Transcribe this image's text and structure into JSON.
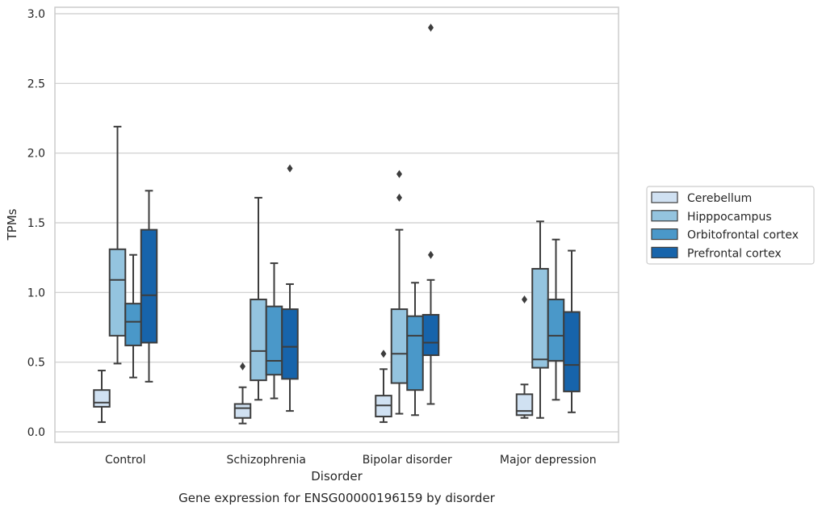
{
  "chart_data": {
    "type": "box",
    "title": "",
    "caption": "Gene expression for ENSG00000196159 by disorder",
    "xlabel": "Disorder",
    "ylabel": "TPMs",
    "ylim": [
      -0.07,
      3.05
    ],
    "yticks": [
      0.0,
      0.5,
      1.0,
      1.5,
      2.0,
      2.5,
      3.0
    ],
    "ytick_labels": [
      "0.0",
      "0.5",
      "1.0",
      "1.5",
      "2.0",
      "2.5",
      "3.0"
    ],
    "categories": [
      "Control",
      "Schizophrenia",
      "Bipolar disorder",
      "Major depression"
    ],
    "grid": "horizontal",
    "legend_position": "right",
    "series": [
      {
        "name": "Cerebellum",
        "color": "#d0e1f2",
        "boxes": [
          {
            "q1": 0.18,
            "median": 0.21,
            "q3": 0.3,
            "whisker_low": 0.07,
            "whisker_high": 0.44,
            "outliers": []
          },
          {
            "q1": 0.1,
            "median": 0.17,
            "q3": 0.2,
            "whisker_low": 0.06,
            "whisker_high": 0.32,
            "outliers": [
              0.47
            ]
          },
          {
            "q1": 0.11,
            "median": 0.19,
            "q3": 0.26,
            "whisker_low": 0.07,
            "whisker_high": 0.45,
            "outliers": [
              0.56
            ]
          },
          {
            "q1": 0.12,
            "median": 0.15,
            "q3": 0.27,
            "whisker_low": 0.1,
            "whisker_high": 0.34,
            "outliers": [
              0.95
            ]
          }
        ]
      },
      {
        "name": "Hipppocampus",
        "color": "#94c4df",
        "boxes": [
          {
            "q1": 0.69,
            "median": 1.09,
            "q3": 1.31,
            "whisker_low": 0.49,
            "whisker_high": 2.19,
            "outliers": []
          },
          {
            "q1": 0.37,
            "median": 0.58,
            "q3": 0.95,
            "whisker_low": 0.23,
            "whisker_high": 1.68,
            "outliers": []
          },
          {
            "q1": 0.35,
            "median": 0.56,
            "q3": 0.88,
            "whisker_low": 0.13,
            "whisker_high": 1.45,
            "outliers": [
              1.68,
              1.85
            ]
          },
          {
            "q1": 0.46,
            "median": 0.52,
            "q3": 1.17,
            "whisker_low": 0.1,
            "whisker_high": 1.51,
            "outliers": []
          }
        ]
      },
      {
        "name": "Orbitofrontal cortex",
        "color": "#4a98c9",
        "boxes": [
          {
            "q1": 0.62,
            "median": 0.79,
            "q3": 0.92,
            "whisker_low": 0.39,
            "whisker_high": 1.27,
            "outliers": []
          },
          {
            "q1": 0.41,
            "median": 0.51,
            "q3": 0.9,
            "whisker_low": 0.24,
            "whisker_high": 1.21,
            "outliers": []
          },
          {
            "q1": 0.3,
            "median": 0.69,
            "q3": 0.83,
            "whisker_low": 0.12,
            "whisker_high": 1.07,
            "outliers": []
          },
          {
            "q1": 0.51,
            "median": 0.69,
            "q3": 0.95,
            "whisker_low": 0.23,
            "whisker_high": 1.38,
            "outliers": []
          }
        ]
      },
      {
        "name": "Prefrontal cortex",
        "color": "#1764ab",
        "boxes": [
          {
            "q1": 0.64,
            "median": 0.98,
            "q3": 1.45,
            "whisker_low": 0.36,
            "whisker_high": 1.73,
            "outliers": []
          },
          {
            "q1": 0.38,
            "median": 0.61,
            "q3": 0.88,
            "whisker_low": 0.15,
            "whisker_high": 1.06,
            "outliers": [
              1.89
            ]
          },
          {
            "q1": 0.55,
            "median": 0.64,
            "q3": 0.84,
            "whisker_low": 0.2,
            "whisker_high": 1.09,
            "outliers": [
              1.27,
              2.9
            ]
          },
          {
            "q1": 0.29,
            "median": 0.48,
            "q3": 0.86,
            "whisker_low": 0.14,
            "whisker_high": 1.3,
            "outliers": []
          }
        ]
      }
    ]
  }
}
